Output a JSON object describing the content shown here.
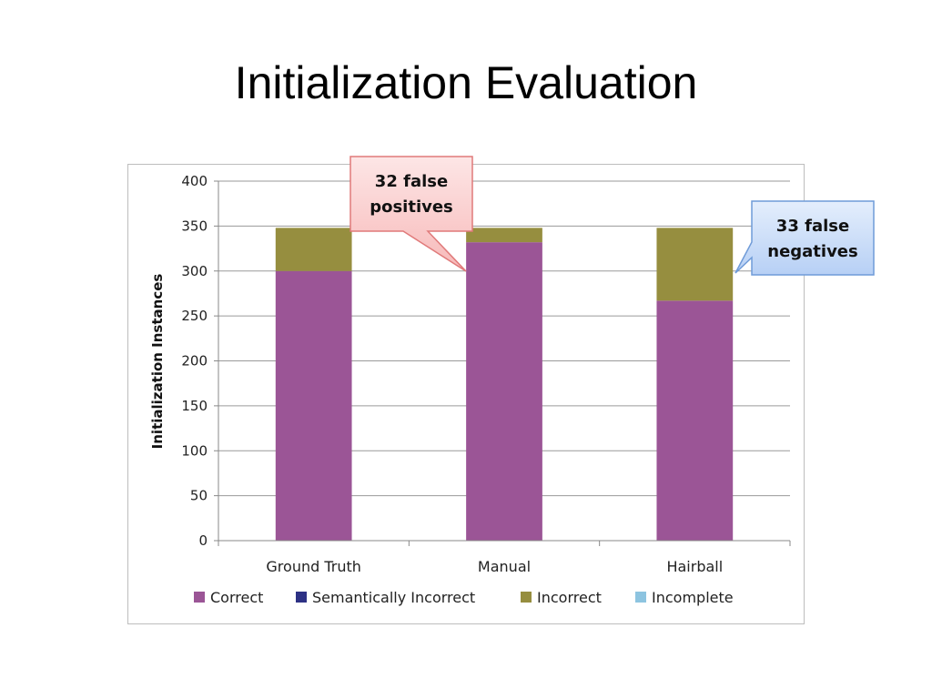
{
  "slide": {
    "title": "Initialization Evaluation"
  },
  "colors": {
    "correct": "#9b5596",
    "semantically_incorrect": "#2d3184",
    "incorrect": "#968e3f",
    "incomplete": "#8dc4e0",
    "callout_red_fill": "#fbd0d0",
    "callout_red_border": "#e07a7a",
    "callout_blue_fill": "#cfe1fb",
    "callout_blue_border": "#6f9bd8"
  },
  "chart_data": {
    "type": "bar",
    "stacked": true,
    "categories": [
      "Ground Truth",
      "Manual",
      "Hairball"
    ],
    "series": [
      {
        "name": "Correct",
        "values": [
          300,
          332,
          267
        ]
      },
      {
        "name": "Semantically Incorrect",
        "values": [
          0,
          0,
          0
        ]
      },
      {
        "name": "Incorrect",
        "values": [
          48,
          16,
          81
        ]
      },
      {
        "name": "Incomplete",
        "values": [
          0,
          0,
          0
        ]
      }
    ],
    "ylabel": "Initialization Instances",
    "ylim": [
      0,
      400
    ],
    "yticks": [
      0,
      50,
      100,
      150,
      200,
      250,
      300,
      350,
      400
    ],
    "grid": true,
    "legend_position": "bottom"
  },
  "callouts": [
    {
      "text_lines": [
        "32 false",
        "positives"
      ]
    },
    {
      "text_lines": [
        "33 false",
        "negatives"
      ]
    }
  ]
}
